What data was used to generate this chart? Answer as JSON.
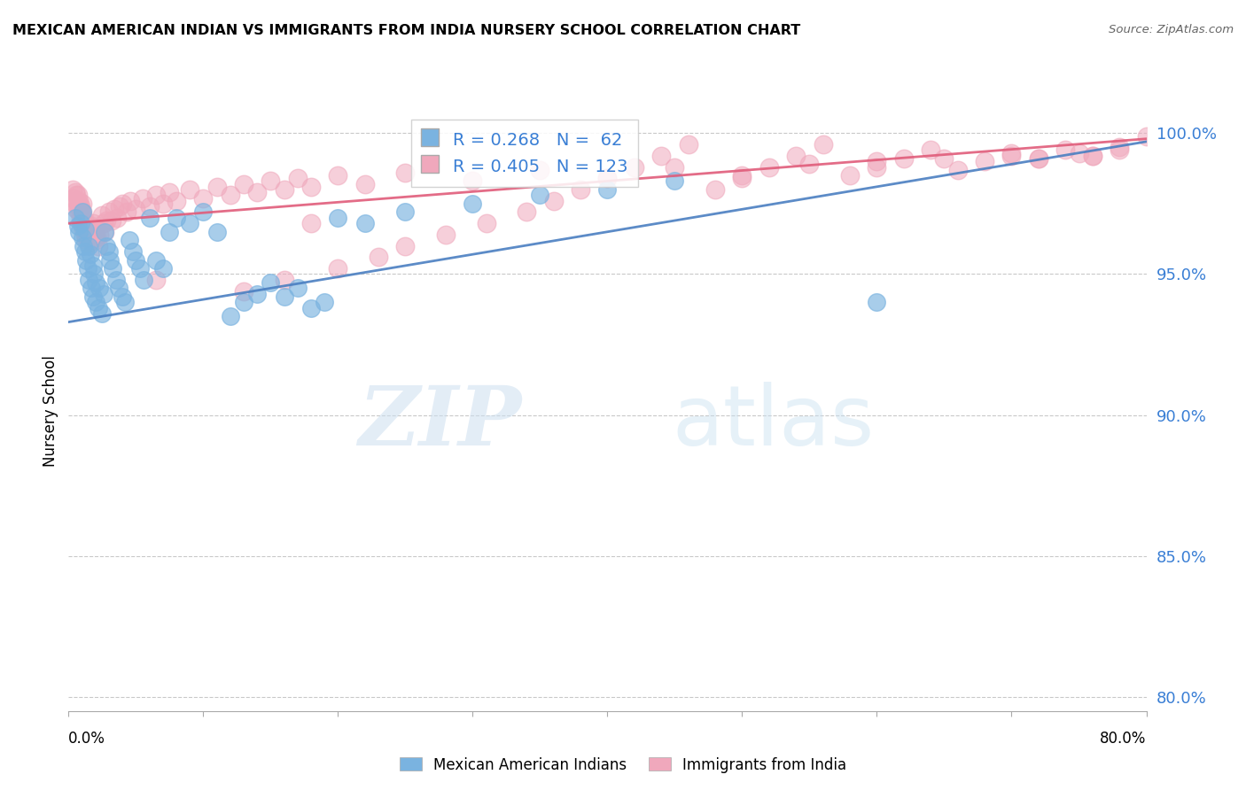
{
  "title": "MEXICAN AMERICAN INDIAN VS IMMIGRANTS FROM INDIA NURSERY SCHOOL CORRELATION CHART",
  "source": "Source: ZipAtlas.com",
  "ylabel": "Nursery School",
  "ytick_vals": [
    0.8,
    0.85,
    0.9,
    0.95,
    1.0
  ],
  "ytick_labels": [
    "80.0%",
    "85.0%",
    "90.0%",
    "95.0%",
    "100.0%"
  ],
  "ymin": 0.795,
  "ymax": 1.008,
  "xmin": 0.0,
  "xmax": 0.8,
  "blue_R": 0.268,
  "blue_N": 62,
  "pink_R": 0.405,
  "pink_N": 123,
  "blue_color": "#7ab3e0",
  "pink_color": "#f0a8bc",
  "blue_line_color": "#4a7fc1",
  "pink_line_color": "#e05c7a",
  "legend_label_blue": "Mexican American Indians",
  "legend_label_pink": "Immigrants from India",
  "watermark_zip": "ZIP",
  "watermark_atlas": "atlas",
  "blue_scatter_x": [
    0.005,
    0.007,
    0.008,
    0.009,
    0.01,
    0.01,
    0.011,
    0.012,
    0.012,
    0.013,
    0.014,
    0.015,
    0.015,
    0.016,
    0.017,
    0.018,
    0.018,
    0.019,
    0.02,
    0.02,
    0.022,
    0.023,
    0.025,
    0.026,
    0.027,
    0.028,
    0.03,
    0.031,
    0.033,
    0.035,
    0.037,
    0.04,
    0.042,
    0.045,
    0.048,
    0.05,
    0.053,
    0.056,
    0.06,
    0.065,
    0.07,
    0.075,
    0.08,
    0.09,
    0.1,
    0.11,
    0.12,
    0.13,
    0.14,
    0.15,
    0.16,
    0.17,
    0.18,
    0.19,
    0.2,
    0.22,
    0.25,
    0.3,
    0.35,
    0.4,
    0.45,
    0.6
  ],
  "blue_scatter_y": [
    0.97,
    0.967,
    0.965,
    0.968,
    0.963,
    0.972,
    0.96,
    0.958,
    0.966,
    0.955,
    0.952,
    0.96,
    0.948,
    0.957,
    0.945,
    0.953,
    0.942,
    0.95,
    0.94,
    0.947,
    0.938,
    0.945,
    0.936,
    0.943,
    0.965,
    0.96,
    0.958,
    0.955,
    0.952,
    0.948,
    0.945,
    0.942,
    0.94,
    0.962,
    0.958,
    0.955,
    0.952,
    0.948,
    0.97,
    0.955,
    0.952,
    0.965,
    0.97,
    0.968,
    0.972,
    0.965,
    0.935,
    0.94,
    0.943,
    0.947,
    0.942,
    0.945,
    0.938,
    0.94,
    0.97,
    0.968,
    0.972,
    0.975,
    0.978,
    0.98,
    0.983,
    0.94
  ],
  "pink_scatter_x": [
    0.003,
    0.004,
    0.005,
    0.005,
    0.006,
    0.006,
    0.006,
    0.007,
    0.007,
    0.008,
    0.008,
    0.008,
    0.009,
    0.009,
    0.009,
    0.01,
    0.01,
    0.01,
    0.01,
    0.011,
    0.011,
    0.011,
    0.012,
    0.012,
    0.012,
    0.013,
    0.013,
    0.013,
    0.014,
    0.014,
    0.015,
    0.015,
    0.015,
    0.016,
    0.016,
    0.017,
    0.017,
    0.018,
    0.018,
    0.019,
    0.02,
    0.02,
    0.021,
    0.022,
    0.023,
    0.025,
    0.026,
    0.027,
    0.028,
    0.03,
    0.032,
    0.034,
    0.036,
    0.038,
    0.04,
    0.043,
    0.046,
    0.05,
    0.055,
    0.06,
    0.065,
    0.07,
    0.075,
    0.08,
    0.09,
    0.1,
    0.11,
    0.12,
    0.13,
    0.14,
    0.15,
    0.16,
    0.17,
    0.18,
    0.2,
    0.22,
    0.25,
    0.3,
    0.35,
    0.4,
    0.45,
    0.5,
    0.55,
    0.6,
    0.65,
    0.7,
    0.72,
    0.75,
    0.76,
    0.78,
    0.13,
    0.16,
    0.2,
    0.23,
    0.25,
    0.28,
    0.31,
    0.34,
    0.36,
    0.38,
    0.4,
    0.42,
    0.44,
    0.46,
    0.48,
    0.5,
    0.52,
    0.54,
    0.56,
    0.58,
    0.6,
    0.62,
    0.64,
    0.66,
    0.68,
    0.7,
    0.72,
    0.74,
    0.76,
    0.78,
    0.8,
    0.065,
    0.18
  ],
  "pink_scatter_y": [
    0.98,
    0.977,
    0.975,
    0.979,
    0.976,
    0.973,
    0.978,
    0.974,
    0.978,
    0.975,
    0.972,
    0.976,
    0.973,
    0.97,
    0.974,
    0.971,
    0.968,
    0.972,
    0.975,
    0.969,
    0.966,
    0.97,
    0.967,
    0.964,
    0.968,
    0.965,
    0.962,
    0.966,
    0.963,
    0.967,
    0.964,
    0.961,
    0.965,
    0.962,
    0.966,
    0.963,
    0.967,
    0.964,
    0.968,
    0.965,
    0.962,
    0.966,
    0.963,
    0.96,
    0.964,
    0.971,
    0.968,
    0.965,
    0.969,
    0.972,
    0.969,
    0.973,
    0.97,
    0.974,
    0.975,
    0.972,
    0.976,
    0.973,
    0.977,
    0.974,
    0.978,
    0.975,
    0.979,
    0.976,
    0.98,
    0.977,
    0.981,
    0.978,
    0.982,
    0.979,
    0.983,
    0.98,
    0.984,
    0.981,
    0.985,
    0.982,
    0.986,
    0.983,
    0.987,
    0.984,
    0.988,
    0.985,
    0.989,
    0.99,
    0.991,
    0.992,
    0.991,
    0.993,
    0.992,
    0.994,
    0.944,
    0.948,
    0.952,
    0.956,
    0.96,
    0.964,
    0.968,
    0.972,
    0.976,
    0.98,
    0.984,
    0.988,
    0.992,
    0.996,
    0.98,
    0.984,
    0.988,
    0.992,
    0.996,
    0.985,
    0.988,
    0.991,
    0.994,
    0.987,
    0.99,
    0.993,
    0.991,
    0.994,
    0.992,
    0.995,
    0.999,
    0.948,
    0.968
  ]
}
